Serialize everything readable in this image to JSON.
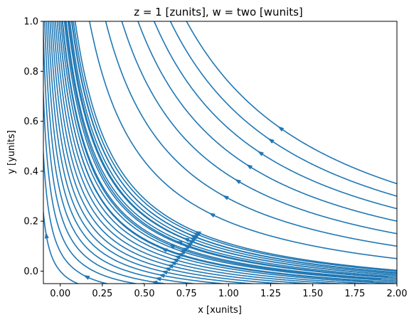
{
  "chart_data": {
    "type": "streamplot",
    "title": "z = 1 [zunits], w = two [wunits]",
    "xlabel": "x [xunits]",
    "ylabel": "y [yunits]",
    "xlim": [
      -0.1,
      2.0
    ],
    "ylim": [
      -0.05,
      1.0
    ],
    "xticks": [
      "0.00",
      "0.25",
      "0.50",
      "0.75",
      "1.00",
      "1.25",
      "1.50",
      "1.75",
      "2.00"
    ],
    "yticks": [
      "0.0",
      "0.2",
      "0.4",
      "0.6",
      "0.8",
      "1.0"
    ],
    "grid": false,
    "line_color": "#1f77b4",
    "x_tick_values": [
      0,
      0.25,
      0.5,
      0.75,
      1.0,
      1.25,
      1.5,
      1.75,
      2.0
    ],
    "y_tick_values": [
      0,
      0.2,
      0.4,
      0.6,
      0.8,
      1.0
    ]
  }
}
